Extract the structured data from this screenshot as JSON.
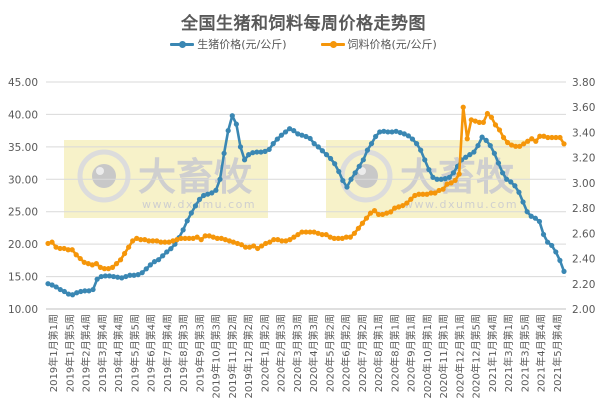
{
  "chart_data": {
    "type": "line",
    "title": "全国生猪和饲料每周价格走势图",
    "legend_position": "top",
    "grid": true,
    "watermark": {
      "brand": "大畜牧",
      "url": "www.dxumu.com"
    },
    "y_left": {
      "label": "生猪价格(元/公斤)",
      "range": [
        10,
        45
      ],
      "ticks": [
        "10.00",
        "15.00",
        "20.00",
        "25.00",
        "30.00",
        "35.00",
        "40.00",
        "45.00"
      ]
    },
    "y_right": {
      "label": "饲料价格(元/公斤)",
      "range": [
        2.0,
        3.8
      ],
      "ticks": [
        "2.00",
        "2.20",
        "2.40",
        "2.60",
        "2.80",
        "3.00",
        "3.20",
        "3.40",
        "3.60",
        "3.80"
      ]
    },
    "x_tick_labels": [
      "2019年1月第1周",
      "2019年1月第5周",
      "2019年2月第4周",
      "2019年3月第4周",
      "2019年4月第4周",
      "2019年5月第5周",
      "2019年6月第4周",
      "2019年7月第4周",
      "2019年8月第3周",
      "2019年9月第3周",
      "2019年10月第3周",
      "2019年11月第2周",
      "2019年12月第2周",
      "2020年1月第2周",
      "2020年2月第3周",
      "2020年3月第3周",
      "2020年4月第3周",
      "2020年5月第2周",
      "2020年6月第2周",
      "2020年7月第2周",
      "2020年8月第1周",
      "2020年8月第1周",
      "2020年9月第1周",
      "2020年10月第1周",
      "2020年11月第1周",
      "2020年12月第1周",
      "2020年12月第5周",
      "2021年1月第4周",
      "2021年3月第1周",
      "2021年3月第5周",
      "2021年4月第4周",
      "2021年5月第4周"
    ],
    "series": [
      {
        "name": "生猪价格(元/公斤)",
        "axis": "left",
        "color": "#3A87B3",
        "values": [
          13.9,
          13.7,
          13.4,
          13.0,
          12.7,
          12.3,
          12.2,
          12.5,
          12.7,
          12.8,
          12.8,
          13.0,
          14.6,
          15.0,
          15.1,
          15.1,
          15.0,
          14.9,
          14.8,
          15.0,
          15.2,
          15.2,
          15.3,
          15.6,
          16.2,
          16.8,
          17.3,
          17.6,
          18.2,
          18.8,
          19.3,
          20.0,
          21.0,
          22.2,
          23.6,
          24.8,
          25.9,
          26.9,
          27.5,
          27.7,
          27.9,
          28.3,
          30.0,
          34.0,
          37.5,
          39.8,
          38.5,
          35.0,
          33.0,
          33.8,
          34.1,
          34.2,
          34.2,
          34.3,
          34.6,
          35.5,
          36.2,
          36.8,
          37.3,
          37.8,
          37.5,
          37.0,
          36.8,
          36.6,
          36.3,
          35.5,
          35.0,
          34.4,
          33.8,
          33.2,
          32.4,
          31.2,
          29.8,
          28.8,
          30.0,
          31.0,
          32.0,
          33.0,
          34.5,
          35.5,
          36.6,
          37.3,
          37.4,
          37.3,
          37.3,
          37.4,
          37.2,
          37.0,
          36.7,
          36.2,
          35.5,
          34.5,
          33.0,
          31.5,
          30.3,
          30.0,
          30.0,
          30.1,
          30.3,
          31.0,
          32.0,
          33.0,
          33.4,
          33.8,
          34.2,
          35.2,
          36.5,
          36.0,
          35.2,
          34.0,
          32.5,
          31.0,
          30.0,
          29.6,
          29.0,
          28.0,
          26.5,
          25.0,
          24.3,
          24.0,
          23.5,
          21.5,
          20.3,
          19.8,
          18.8,
          17.5,
          15.8
        ]
      },
      {
        "name": "饲料价格(元/公斤)",
        "axis": "right",
        "color": "#F5960A",
        "values": [
          2.52,
          2.53,
          2.49,
          2.48,
          2.48,
          2.47,
          2.47,
          2.43,
          2.4,
          2.37,
          2.36,
          2.35,
          2.36,
          2.33,
          2.32,
          2.32,
          2.33,
          2.36,
          2.39,
          2.44,
          2.49,
          2.54,
          2.56,
          2.55,
          2.55,
          2.54,
          2.54,
          2.54,
          2.53,
          2.53,
          2.53,
          2.54,
          2.55,
          2.56,
          2.56,
          2.56,
          2.56,
          2.57,
          2.55,
          2.58,
          2.58,
          2.57,
          2.56,
          2.56,
          2.55,
          2.54,
          2.53,
          2.52,
          2.51,
          2.49,
          2.49,
          2.5,
          2.48,
          2.5,
          2.52,
          2.53,
          2.55,
          2.55,
          2.54,
          2.54,
          2.55,
          2.57,
          2.59,
          2.61,
          2.61,
          2.61,
          2.61,
          2.6,
          2.59,
          2.59,
          2.57,
          2.56,
          2.56,
          2.56,
          2.57,
          2.57,
          2.6,
          2.64,
          2.68,
          2.72,
          2.76,
          2.78,
          2.75,
          2.75,
          2.76,
          2.77,
          2.8,
          2.81,
          2.82,
          2.84,
          2.87,
          2.9,
          2.91,
          2.91,
          2.91,
          2.92,
          2.92,
          2.94,
          2.95,
          2.99,
          3.0,
          3.02,
          3.07,
          3.6,
          3.35,
          3.5,
          3.49,
          3.48,
          3.48,
          3.55,
          3.52,
          3.46,
          3.42,
          3.36,
          3.32,
          3.3,
          3.29,
          3.29,
          3.31,
          3.33,
          3.35,
          3.33,
          3.37,
          3.37,
          3.36,
          3.36,
          3.36,
          3.36,
          3.31
        ]
      }
    ]
  },
  "legend": {
    "items": [
      {
        "label": "生猪价格(元/公斤)",
        "color": "#3A87B3"
      },
      {
        "label": "饲料价格(元/公斤)",
        "color": "#F5960A"
      }
    ]
  },
  "colors": {
    "grid": "#D9D9D9",
    "axis_text": "#595959",
    "title": "#595959",
    "watermark_bg": "#F6F0C0",
    "transition": "#5A9E8A"
  }
}
